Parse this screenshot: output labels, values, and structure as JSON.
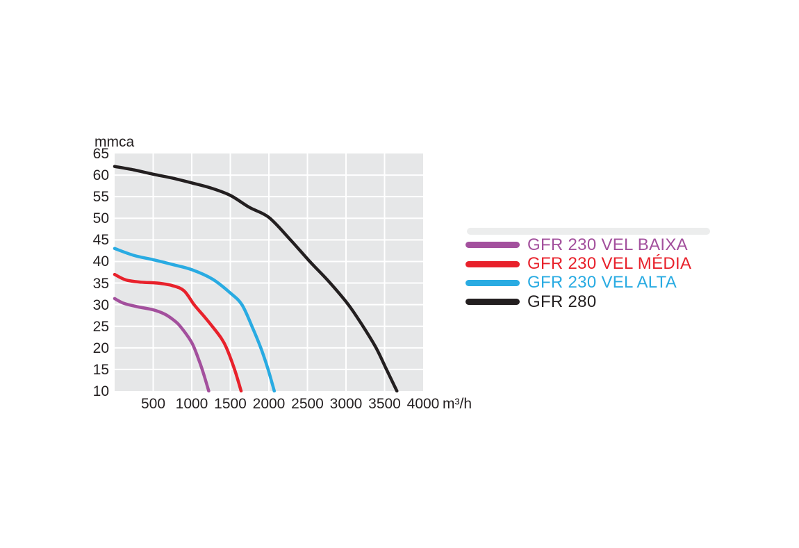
{
  "page": {
    "background": "#ffffff"
  },
  "chart_data": {
    "type": "line",
    "title": "",
    "ylabel": "mmca",
    "xlabel": "",
    "xunit": "m³/h",
    "xlim": [
      0,
      4000
    ],
    "ylim": [
      10,
      65
    ],
    "xticks": [
      500,
      1000,
      1500,
      2000,
      2500,
      3000,
      3500,
      4000
    ],
    "yticks": [
      65,
      60,
      55,
      50,
      45,
      40,
      35,
      30,
      25,
      20,
      15,
      10
    ],
    "grid": true,
    "legend_position": "right-of-plot",
    "plot_bg": "#e6e7e8",
    "grid_color": "#ffffff",
    "text_color": "#231f20",
    "series": [
      {
        "name": "GFR 230 VEL BAIXA",
        "color": "#a3509d",
        "points": [
          [
            0,
            31.4
          ],
          [
            120,
            30.3
          ],
          [
            300,
            29.5
          ],
          [
            500,
            28.8
          ],
          [
            650,
            27.8
          ],
          [
            760,
            26.5
          ],
          [
            850,
            25
          ],
          [
            1000,
            21.2
          ],
          [
            1100,
            16.8
          ],
          [
            1160,
            13.6
          ],
          [
            1220,
            10
          ]
        ]
      },
      {
        "name": "GFR 230 VEL MÉDIA",
        "color": "#e8212b",
        "points": [
          [
            0,
            37
          ],
          [
            150,
            35.7
          ],
          [
            350,
            35.2
          ],
          [
            550,
            35
          ],
          [
            750,
            34.4
          ],
          [
            900,
            33.2
          ],
          [
            1030,
            30
          ],
          [
            1150,
            27.5
          ],
          [
            1265,
            25
          ],
          [
            1380,
            22.3
          ],
          [
            1450,
            20
          ],
          [
            1555,
            15
          ],
          [
            1640,
            10
          ]
        ]
      },
      {
        "name": "GFR 230 VEL ALTA",
        "color": "#29abe2",
        "points": [
          [
            0,
            43
          ],
          [
            250,
            41.4
          ],
          [
            500,
            40.4
          ],
          [
            750,
            39.3
          ],
          [
            1000,
            38.1
          ],
          [
            1270,
            35.9
          ],
          [
            1500,
            32.7
          ],
          [
            1650,
            30
          ],
          [
            1780,
            25
          ],
          [
            1895,
            20
          ],
          [
            1990,
            15
          ],
          [
            2070,
            10
          ]
        ]
      },
      {
        "name": "GFR 280",
        "color": "#231f20",
        "points": [
          [
            0,
            62
          ],
          [
            250,
            61.2
          ],
          [
            500,
            60.2
          ],
          [
            750,
            59.3
          ],
          [
            1000,
            58.2
          ],
          [
            1250,
            57
          ],
          [
            1500,
            55.3
          ],
          [
            1750,
            52.5
          ],
          [
            2000,
            50.2
          ],
          [
            2280,
            45
          ],
          [
            2530,
            40
          ],
          [
            2780,
            35.3
          ],
          [
            3030,
            30
          ],
          [
            3220,
            25
          ],
          [
            3390,
            20
          ],
          [
            3525,
            15
          ],
          [
            3660,
            10
          ]
        ]
      }
    ]
  }
}
